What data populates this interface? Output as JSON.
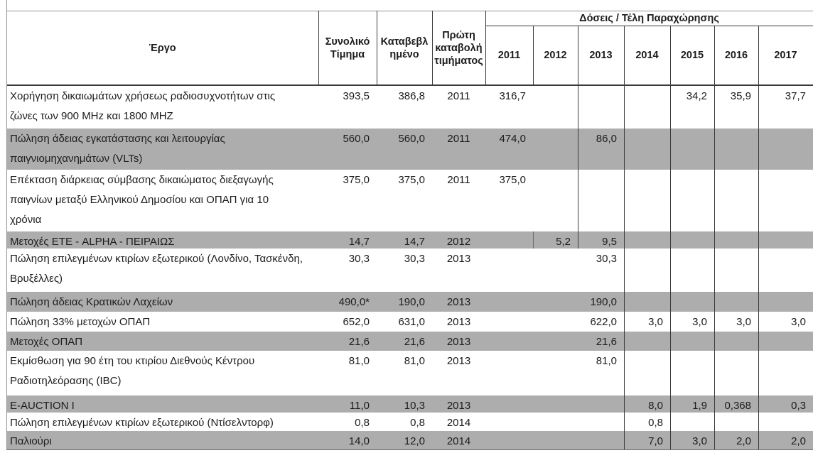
{
  "document": {
    "table": {
      "headers": {
        "project": "Έργο",
        "total_price": "Συνολικό Τίμημα",
        "paid": "Καταβεβλ\nημένο",
        "first_payment": "Πρώτη καταβολή τιμήματος",
        "installments_group": "Δόσεις / Τέλη Παραχώρησης",
        "years": [
          "2011",
          "2012",
          "2013",
          "2014",
          "2015",
          "2016",
          "2017"
        ]
      },
      "rows": [
        {
          "project": "Χορήγηση δικαιωμάτων χρήσεως ραδιοσυχνοτήτων στις\nζώνες των 900 MHz και 1800 MHZ",
          "total": "393,5",
          "paid": "386,8",
          "first_year": "2011",
          "installments": {
            "2011": "316,7",
            "2015": "34,2",
            "2016": "35,9",
            "2017": "37,7"
          },
          "shaded": false
        },
        {
          "project": "Πώληση άδειας εγκατάστασης και λειτουργίας\nπαιγνιομηχανημάτων (VLTs)",
          "total": "560,0",
          "paid": "560,0",
          "first_year": "2011",
          "installments": {
            "2011": "474,0",
            "2013": "86,0"
          },
          "shaded": true
        },
        {
          "project": "Επέκταση διάρκειας σύμβασης δικαιώματος διεξαγωγής\nπαιγνίων μεταξύ Ελληνικού Δημοσίου και ΟΠΑΠ για 10\nχρόνια",
          "total": "375,0",
          "paid": "375,0",
          "first_year": "2011",
          "installments": {
            "2011": "375,0"
          },
          "shaded": false
        },
        {
          "project": "Μετοχές ΕΤΕ - ALPHA - ΠΕΙΡΑΙΩΣ",
          "total": "14,7",
          "paid": "14,7",
          "first_year": "2012",
          "installments": {
            "2012": "5,2",
            "2013": "9,5"
          },
          "shaded": true
        },
        {
          "project": "Πώληση επιλεγμένων κτιρίων εξωτερικού (Λονδίνο, Τασκένδη,\nΒρυξέλλες)",
          "total": "30,3",
          "paid": "30,3",
          "first_year": "2013",
          "installments": {
            "2013": "30,3"
          },
          "shaded": false
        },
        {
          "project": "Πώληση άδειας Κρατικών Λαχείων",
          "total": "490,0*",
          "paid": "190,0",
          "first_year": "2013",
          "installments": {
            "2013": "190,0"
          },
          "shaded": true
        },
        {
          "project": "Πώληση 33% μετοχών ΟΠΑΠ",
          "total": "652,0",
          "paid": "631,0",
          "first_year": "2013",
          "installments": {
            "2013": "622,0",
            "2014": "3,0",
            "2015": "3,0",
            "2016": "3,0",
            "2017": "3,0"
          },
          "shaded": false
        },
        {
          "project": "Μετοχές ΟΠΑΠ",
          "total": "21,6",
          "paid": "21,6",
          "first_year": "2013",
          "installments": {
            "2013": "21,6"
          },
          "shaded": true
        },
        {
          "project": "Εκμίσθωση για 90 έτη του κτιρίου Διεθνούς Κέντρου\nΡαδιοτηλεόρασης (IBC)",
          "total": "81,0",
          "paid": "81,0",
          "first_year": "2013",
          "installments": {
            "2013": "81,0"
          },
          "shaded": false
        },
        {
          "project": "E-AUCTION I",
          "total": "11,0",
          "paid": "10,3",
          "first_year": "2013",
          "installments": {
            "2014": "8,0",
            "2015": "1,9",
            "2016": "0,368",
            "2017": "0,3"
          },
          "shaded": true
        },
        {
          "project": "Πώληση επιλεγμένων κτιρίων εξωτερικού (Ντίσελντορφ)",
          "total": "0,8",
          "paid": "0,8",
          "first_year": "2014",
          "installments": {
            "2014": "0,8"
          },
          "shaded": false
        },
        {
          "project": "Παλιούρι",
          "total": "14,0",
          "paid": "12,0",
          "first_year": "2014",
          "installments": {
            "2014": "7,0",
            "2015": "3,0",
            "2016": "2,0",
            "2017": "2,0"
          },
          "shaded": true
        }
      ]
    },
    "colors": {
      "row_shade": "#adadad",
      "line_dark": "#3a3a3a",
      "line_light": "#929292"
    }
  }
}
